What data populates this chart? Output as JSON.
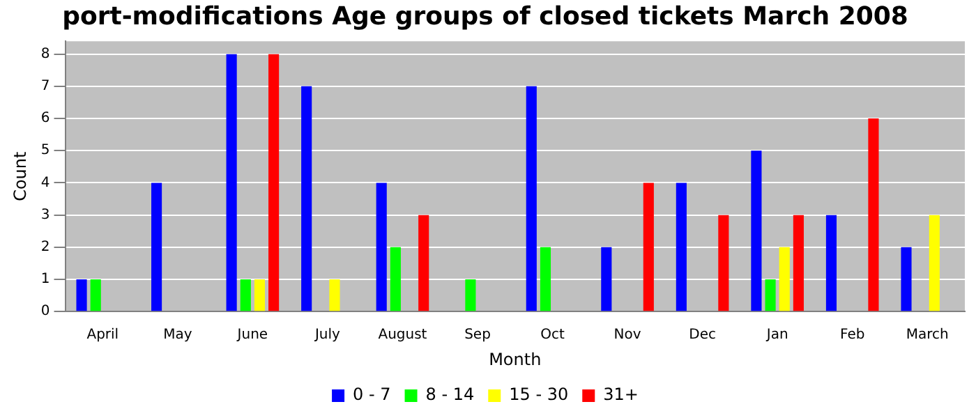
{
  "chart_data": {
    "type": "bar",
    "title": "port-modifications Age groups of closed tickets March 2008",
    "xlabel": "Month",
    "ylabel": "Count",
    "categories": [
      "April",
      "May",
      "June",
      "July",
      "August",
      "Sep",
      "Oct",
      "Nov",
      "Dec",
      "Jan",
      "Feb",
      "March"
    ],
    "series": [
      {
        "name": "0 - 7",
        "color": "#0000ff",
        "values": [
          1,
          4,
          8,
          7,
          4,
          0,
          7,
          2,
          4,
          5,
          3,
          2
        ]
      },
      {
        "name": "8 - 14",
        "color": "#00ff00",
        "values": [
          1,
          0,
          1,
          0,
          2,
          1,
          2,
          0,
          0,
          1,
          0,
          0
        ]
      },
      {
        "name": "15 - 30",
        "color": "#ffff00",
        "values": [
          0,
          0,
          1,
          1,
          0,
          0,
          0,
          0,
          0,
          2,
          0,
          3
        ]
      },
      {
        "name": "31+",
        "color": "#ff0000",
        "values": [
          0,
          0,
          8,
          0,
          3,
          0,
          0,
          4,
          3,
          3,
          6,
          0
        ]
      }
    ],
    "ylim": [
      0,
      8.4
    ],
    "yticks": [
      0,
      1,
      2,
      3,
      4,
      5,
      6,
      7,
      8
    ],
    "grid": "y",
    "legend": "bottom"
  }
}
